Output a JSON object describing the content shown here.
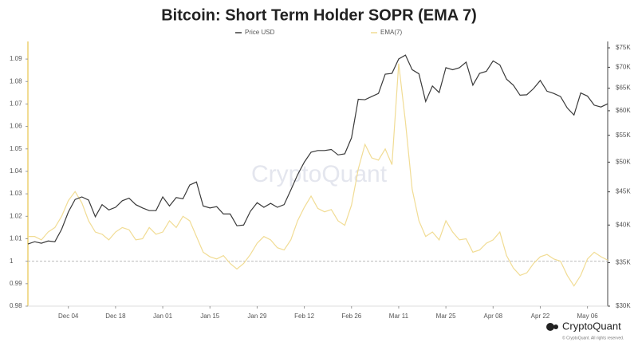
{
  "chart_data": {
    "type": "line",
    "title": "Bitcoin: Short Term Holder SOPR (EMA 7)",
    "watermark": "CryptoQuant",
    "brand": "CryptoQuant",
    "copyright": "© CryptoQuant. All rights reserved.",
    "categories": [
      null,
      null,
      null,
      null,
      null,
      null,
      "Dec 04",
      null,
      null,
      null,
      null,
      null,
      null,
      "Dec 18",
      null,
      null,
      null,
      null,
      null,
      null,
      "Jan 01",
      null,
      null,
      null,
      null,
      null,
      null,
      "Jan 15",
      null,
      null,
      null,
      null,
      null,
      null,
      "Jan 29",
      null,
      null,
      null,
      null,
      null,
      null,
      "Feb 12",
      null,
      null,
      null,
      null,
      null,
      null,
      "Feb 26",
      null,
      null,
      null,
      null,
      null,
      null,
      "Mar 11",
      null,
      null,
      null,
      null,
      null,
      null,
      "Mar 25",
      null,
      null,
      null,
      null,
      null,
      null,
      "Apr 08",
      null,
      null,
      null,
      null,
      null,
      null,
      "Apr 22",
      null,
      null,
      null,
      null,
      null,
      null,
      "May 06",
      null,
      null,
      null
    ],
    "series": [
      {
        "name": "Price USD",
        "color": "#3a3a3a",
        "axis": "y2",
        "values": [
          37400,
          37700,
          37500,
          37800,
          37700,
          39400,
          41900,
          43800,
          44200,
          43700,
          41200,
          43000,
          42200,
          42600,
          43600,
          44000,
          43000,
          42500,
          42100,
          42100,
          44200,
          42800,
          44100,
          43900,
          46100,
          46600,
          42800,
          42500,
          42700,
          41600,
          41600,
          39900,
          40000,
          42000,
          43300,
          42600,
          43200,
          42600,
          43000,
          45300,
          47800,
          50000,
          51800,
          52100,
          52100,
          52300,
          51300,
          51500,
          54500,
          62500,
          62400,
          63100,
          63800,
          68300,
          68500,
          72100,
          73100,
          69400,
          68400,
          62000,
          65500,
          64000,
          69900,
          69400,
          69900,
          71300,
          65700,
          68500,
          69000,
          71600,
          70600,
          67100,
          65700,
          63400,
          63500,
          64900,
          66800,
          64300,
          63800,
          63100,
          60600,
          59100,
          63900,
          63200,
          61200,
          60800,
          61500
        ]
      },
      {
        "name": "EMA(7)",
        "color": "#f1dc94",
        "values": [
          1.011,
          1.011,
          1.0095,
          1.013,
          1.015,
          1.02,
          1.027,
          1.031,
          1.026,
          1.018,
          1.013,
          1.012,
          1.0095,
          1.013,
          1.015,
          1.014,
          1.0095,
          1.01,
          1.015,
          1.012,
          1.013,
          1.018,
          1.015,
          1.02,
          1.018,
          1.011,
          1.004,
          1.002,
          1.001,
          1.0025,
          0.999,
          0.9965,
          0.999,
          1.003,
          1.008,
          1.011,
          1.0095,
          1.006,
          1.005,
          1.0095,
          1.018,
          1.024,
          1.029,
          1.0235,
          1.022,
          1.023,
          1.018,
          1.016,
          1.025,
          1.041,
          1.052,
          1.046,
          1.045,
          1.05,
          1.043,
          1.088,
          1.062,
          1.032,
          1.018,
          1.011,
          1.013,
          1.0095,
          1.018,
          1.013,
          1.0095,
          1.01,
          1.004,
          1.005,
          1.008,
          1.0095,
          1.013,
          1.0025,
          0.997,
          0.9937,
          0.9948,
          0.999,
          1.002,
          1.003,
          1.001,
          1.0,
          0.9937,
          0.989,
          0.9937,
          1.001,
          1.004,
          1.002,
          1.0005
        ]
      }
    ],
    "ylim": [
      0.98,
      1.095
    ],
    "yticks": [
      0.98,
      0.99,
      1,
      1.01,
      1.02,
      1.03,
      1.04,
      1.05,
      1.06,
      1.07,
      1.08,
      1.09
    ],
    "y2lim": [
      30000,
      75000
    ],
    "y2log": true,
    "y2ticks": [
      {
        "value": 30000,
        "label": "$30K"
      },
      {
        "value": 35000,
        "label": "$35K"
      },
      {
        "value": 40000,
        "label": "$40K"
      },
      {
        "value": 45000,
        "label": "$45K"
      },
      {
        "value": 50000,
        "label": "$50K"
      },
      {
        "value": 55000,
        "label": "$55K"
      },
      {
        "value": 60000,
        "label": "$60K"
      },
      {
        "value": 65000,
        "label": "$65K"
      },
      {
        "value": 70000,
        "label": "$70K"
      },
      {
        "value": 75000,
        "label": "$75K"
      }
    ],
    "hline": 1,
    "legend": "top"
  }
}
